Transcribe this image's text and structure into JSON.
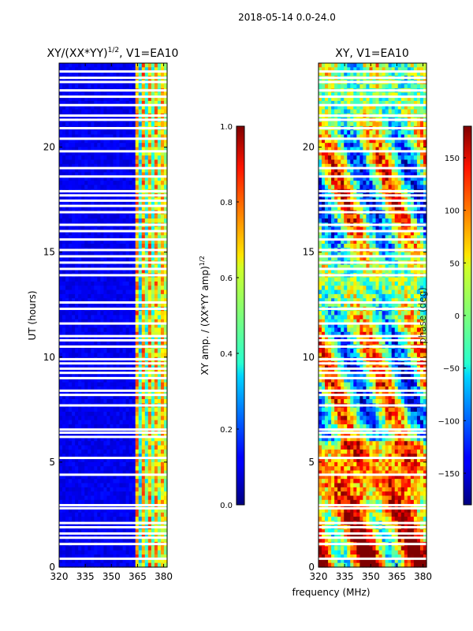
{
  "figure_title": "2018-05-14 0.0-24.0",
  "chart_data": [
    {
      "type": "heatmap",
      "title": "XY/(XX*YY)",
      "title_exponent": "1/2",
      "title_suffix": ", V1=EA10",
      "xlabel": "",
      "ylabel": "UT (hours)",
      "xlim": [
        320,
        382
      ],
      "ylim": [
        0,
        24
      ],
      "xticks": [
        320,
        335,
        350,
        365,
        380
      ],
      "yticks": [
        0,
        5,
        10,
        15,
        20
      ],
      "colormap": "jet",
      "colorbar": {
        "label": "XY amp. / (XX*YY amp)",
        "label_exponent": "1/2",
        "range": [
          0.0,
          1.0
        ],
        "ticks": [
          0.0,
          0.2,
          0.4,
          0.6,
          0.8,
          1.0
        ],
        "tick_labels": [
          "0.0",
          "0.2",
          "0.4",
          "0.6",
          "0.8",
          "1.0"
        ]
      },
      "flagged_hours": [
        0.4,
        1.1,
        1.4,
        1.6,
        1.9,
        2.1,
        2.8,
        2.95,
        4.4,
        5.2,
        6.2,
        6.4,
        6.55,
        7.7,
        8.2,
        8.4,
        9.0,
        9.25,
        9.45,
        9.7,
        9.9,
        10.5,
        10.8,
        11.0,
        11.6,
        12.3,
        12.6,
        13.9,
        14.2,
        14.5,
        14.8,
        15.1,
        15.6,
        16.0,
        16.3,
        16.9,
        17.2,
        17.45,
        17.7,
        17.9,
        18.6,
        19.0,
        19.8,
        20.4,
        20.9,
        21.3,
        21.5,
        22.0,
        22.4,
        22.7,
        23.1,
        23.3,
        23.6
      ]
    },
    {
      "type": "heatmap",
      "title": "XY, V1=EA10",
      "xlabel": "frequency (MHz)",
      "ylabel": "",
      "xlim": [
        320,
        382
      ],
      "ylim": [
        0,
        24
      ],
      "xticks": [
        320,
        335,
        350,
        365,
        380
      ],
      "yticks": [
        0,
        5,
        10,
        15,
        20
      ],
      "colormap": "jet",
      "colorbar": {
        "label": "phase (deg)",
        "range": [
          -180,
          180
        ],
        "ticks": [
          -150,
          -100,
          -50,
          0,
          50,
          100,
          150
        ],
        "tick_labels": [
          "−150",
          "−100",
          "−50",
          "0",
          "50",
          "100",
          "150"
        ]
      },
      "flagged_hours": [
        0.4,
        1.1,
        1.4,
        1.6,
        1.9,
        2.1,
        2.8,
        2.95,
        4.4,
        5.2,
        6.2,
        6.4,
        6.55,
        7.7,
        8.2,
        8.4,
        9.0,
        9.25,
        9.45,
        9.7,
        9.9,
        10.5,
        10.8,
        11.0,
        11.6,
        12.3,
        12.6,
        13.9,
        14.2,
        14.5,
        14.8,
        15.1,
        15.6,
        16.0,
        16.3,
        16.9,
        17.2,
        17.45,
        17.7,
        17.9,
        18.6,
        19.0,
        19.8,
        20.4,
        20.9,
        21.3,
        21.5,
        22.0,
        22.4,
        22.7,
        23.1,
        23.3,
        23.6
      ]
    }
  ]
}
